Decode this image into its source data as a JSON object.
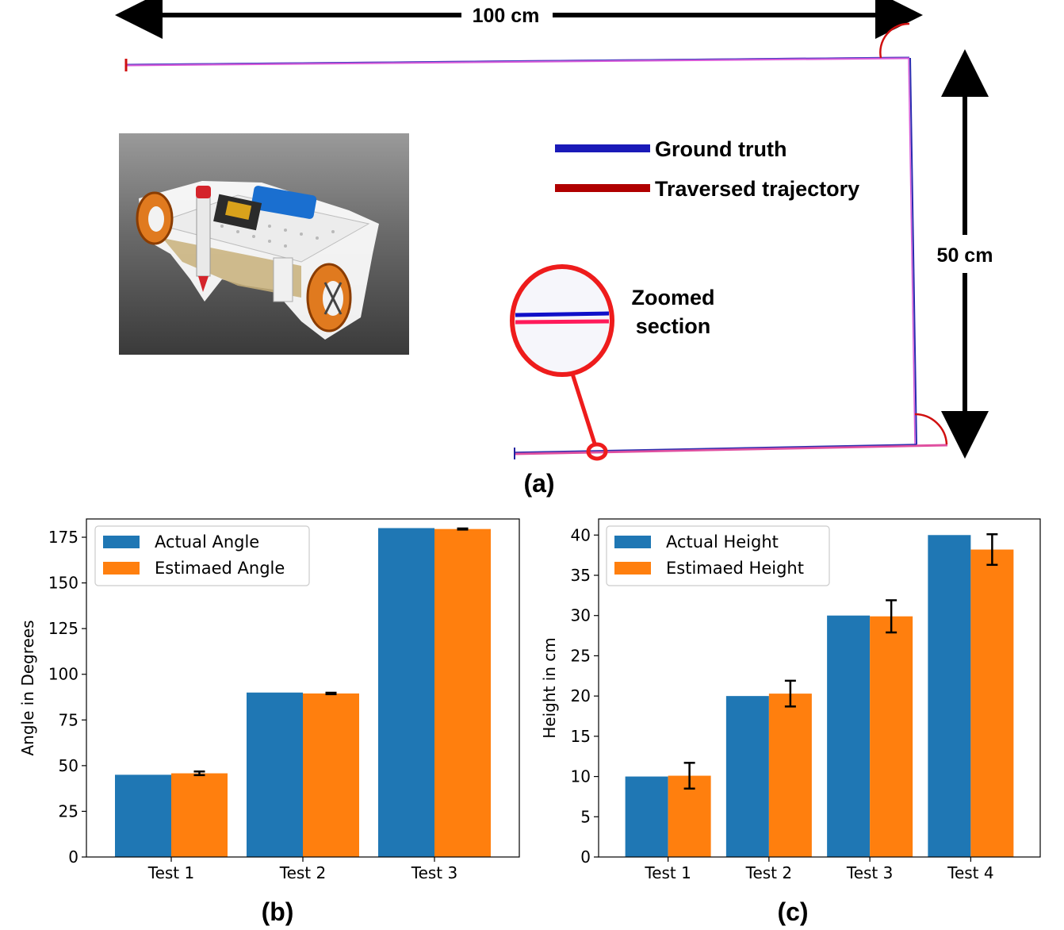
{
  "panel_a": {
    "label": "(a)",
    "width_label": "100 cm",
    "height_label": "50 cm",
    "legend": [
      {
        "label": "Ground truth",
        "color": "#1a1ab8"
      },
      {
        "label": "Traversed trajectory",
        "color": "#b00000"
      }
    ],
    "zoom_label_line1": "Zoomed",
    "zoom_label_line2": "section",
    "photo_icon": "robot-photo-icon"
  },
  "chart_data": [
    {
      "type": "bar",
      "panel_label": "(b)",
      "categories": [
        "Test 1",
        "Test 2",
        "Test 3"
      ],
      "series": [
        {
          "name": "Actual Angle",
          "values": [
            45,
            90,
            180
          ],
          "color": "#1f77b4"
        },
        {
          "name": "Estimaed Angle",
          "values": [
            45.8,
            89.5,
            179.5
          ],
          "color": "#ff7f0e",
          "error": [
            1.0,
            0.4,
            0.3
          ]
        }
      ],
      "ylabel": "Angle in Degrees",
      "ylim": [
        0,
        185
      ],
      "yticks": [
        0,
        25,
        50,
        75,
        100,
        125,
        150,
        175
      ],
      "legend_position": "top-left",
      "grid": false
    },
    {
      "type": "bar",
      "panel_label": "(c)",
      "categories": [
        "Test 1",
        "Test 2",
        "Test 3",
        "Test 4"
      ],
      "series": [
        {
          "name": "Actual Height",
          "values": [
            10,
            20,
            30,
            40
          ],
          "color": "#1f77b4"
        },
        {
          "name": "Estimaed Height",
          "values": [
            10.1,
            20.3,
            29.9,
            38.2
          ],
          "color": "#ff7f0e",
          "error": [
            1.6,
            1.6,
            2.0,
            1.9
          ]
        }
      ],
      "ylabel": "Height in cm",
      "ylim": [
        0,
        42
      ],
      "yticks": [
        0,
        5,
        10,
        15,
        20,
        25,
        30,
        35,
        40
      ],
      "legend_position": "top-left",
      "grid": false
    }
  ]
}
